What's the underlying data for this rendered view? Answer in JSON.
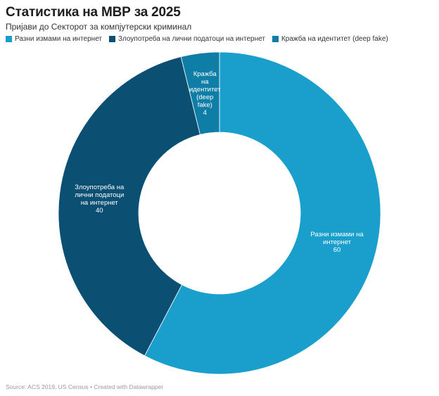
{
  "header": {
    "title": "Статистика на МВР за 2025",
    "subtitle": "Пријави до Секторот за компјутерски криминал"
  },
  "legend": {
    "items": [
      {
        "label": "Разни измами на интернет",
        "color": "#1a9fcc"
      },
      {
        "label": "Злоупотреба на лични податоци на интернет",
        "color": "#0b4f73"
      },
      {
        "label": "Кражба на идентитет (deep fake)",
        "color": "#0e7ea6"
      }
    ]
  },
  "chart_data": {
    "type": "pie",
    "donut": true,
    "categories": [
      "Разни измами на интернет",
      "Злоупотреба на лични податоци на интернет",
      "Кражба на идентитет (deep fake)"
    ],
    "values": [
      60,
      40,
      4
    ],
    "colors": [
      "#1a9fcc",
      "#0b4f73",
      "#0e7ea6"
    ],
    "slice_labels": [
      [
        "Разни измами на",
        "интернет"
      ],
      [
        "Злоупотреба на",
        "лични податоци",
        "на интернет"
      ],
      [
        "Кражба",
        "на",
        "идентитет",
        "(deep",
        "fake)"
      ]
    ]
  },
  "footer": {
    "source": "Source: ACS 2019, US Census • Created with Datawrapper"
  }
}
